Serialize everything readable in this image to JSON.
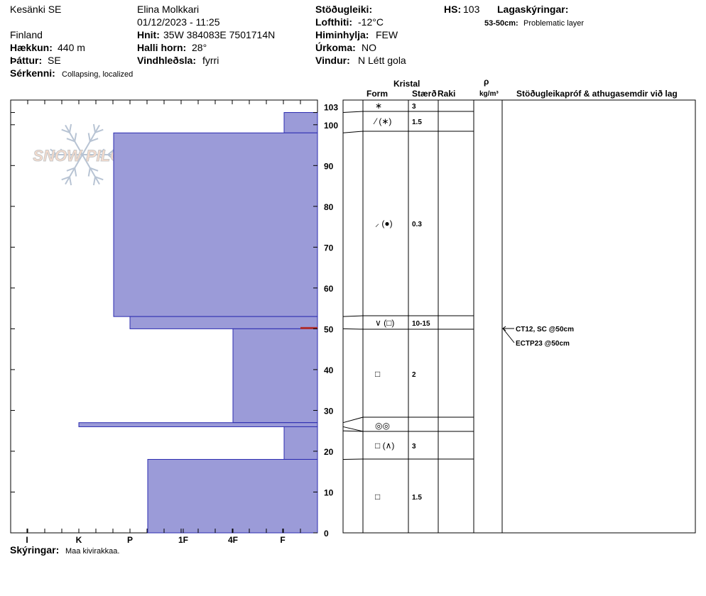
{
  "header": {
    "location": "Kesänki SE",
    "observer": "Elina Molkkari",
    "datetime": "01/12/2023 - 11:25",
    "country": "Finland",
    "elevation_label": "Hækkun:",
    "elevation": "440 m",
    "aspect_label": "Þáttur:",
    "aspect": "SE",
    "features_label": "Sérkenni:",
    "features": "Collapsing, localized",
    "coords_label": "Hnit:",
    "coords": "35W 384083E 7501714N",
    "slope_label": "Halli horn:",
    "slope": "28°",
    "wind_loading_label": "Vindhleðsla:",
    "wind_loading": "fyrri",
    "stability_label": "Stöðugleiki:",
    "stability": "",
    "air_temp_label": "Lofthiti:",
    "air_temp": "-12°C",
    "sky_label": "Himinhylja:",
    "sky": "FEW",
    "precip_label": "Úrkoma:",
    "precip": "NO",
    "wind_label": "Vindur:",
    "wind": "N Létt gola",
    "hs_label": "HS:",
    "hs": "103",
    "layer_notes_title": "Lagaskýringar:",
    "layer_note_range": "53-50cm:",
    "layer_note_text": "Problematic layer"
  },
  "logo_text": "SNOW PILOT",
  "footer": {
    "notes_label": "Skýringar:",
    "notes": "Maa kivirakkaa."
  },
  "table_headers": {
    "crystal": "Kristal",
    "form": "Form",
    "size": "Stærð",
    "moisture": "Raki",
    "density_symbol": "ρ",
    "density_unit": "kg/m³",
    "tests": "Stöðugleikapróf & athugasemdir við lag"
  },
  "tests": [
    {
      "text": "CT12, SC @50cm",
      "depth": 50
    },
    {
      "text": "ECTP23 @50cm",
      "depth": 50
    }
  ],
  "chart_data": {
    "type": "bar",
    "description_axis_x": "hardness",
    "x_tick_labels": [
      "I",
      "K",
      "P",
      "1F",
      "4F",
      "F"
    ],
    "y_ticks": [
      0,
      10,
      20,
      30,
      40,
      50,
      60,
      70,
      80,
      90,
      100,
      103
    ],
    "ylim": [
      0,
      103
    ],
    "colors": {
      "layer_fill": "#9b9bd8",
      "layer_stroke": "#2c2cb0",
      "problem_layer": "#b03030"
    },
    "layers": [
      {
        "bottom": 98,
        "top": 103,
        "hardness": "F",
        "form": "∗",
        "size": "3"
      },
      {
        "bottom": 53,
        "top": 98,
        "hardness": "1F-",
        "form": "⁄ (∗)",
        "size": "1.5"
      },
      {
        "bottom": 50,
        "top": 53,
        "hardness": "P+",
        "form": "⸝ (●)",
        "size": "0.3"
      },
      {
        "bottom": 27,
        "top": 50,
        "hardness": "F-",
        "form": "∨ (□)",
        "size": "10-15"
      },
      {
        "bottom": 26,
        "top": 27,
        "hardness": "K",
        "form": "□",
        "size": "2"
      },
      {
        "bottom": 18,
        "top": 26,
        "hardness": "F+",
        "form": "◎◎",
        "size": ""
      },
      {
        "bottom": 0,
        "top": 18,
        "hardness": "1F",
        "form": "□ (∧)",
        "size": "3"
      }
    ],
    "table_rows": [
      {
        "bottom": 98,
        "top": 103,
        "form": "∗",
        "size": "3"
      },
      {
        "bottom": 53,
        "top": 98,
        "form": "⁄ (∗)",
        "size": "1.5"
      },
      {
        "bottom": 50,
        "top": 53,
        "form": "⸝ (●)",
        "size": "0.3"
      },
      {
        "bottom": 28,
        "top": 50,
        "form": "∨ (□)",
        "size": "10-15"
      },
      {
        "bottom": 25,
        "top": 28,
        "form": "□",
        "size": "2"
      },
      {
        "bottom": 18,
        "top": 25,
        "form": "◎◎",
        "size": ""
      },
      {
        "bottom": 0,
        "top": 18,
        "form": "□ (∧)",
        "size": "3"
      },
      {
        "bottom": 0,
        "top": 0,
        "form": "□",
        "size": "1.5"
      }
    ]
  }
}
